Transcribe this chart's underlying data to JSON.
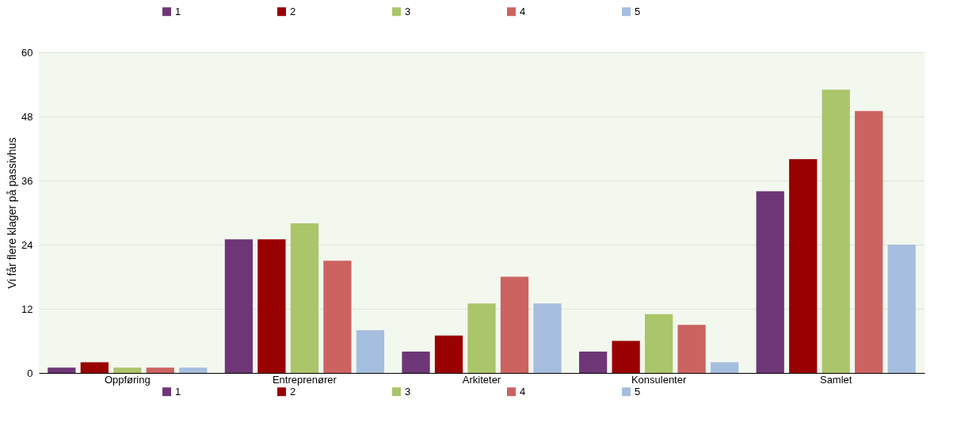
{
  "chart_data": {
    "type": "bar",
    "ylabel": "Vi får flere klager på passivhus",
    "categories": [
      "Oppføring",
      "Entreprenører",
      "Arkiteter",
      "Konsulenter",
      "Samlet"
    ],
    "series": [
      {
        "name": "1",
        "color": "#6e3677",
        "values": [
          1,
          25,
          4,
          4,
          34
        ]
      },
      {
        "name": "2",
        "color": "#990000",
        "values": [
          2,
          25,
          7,
          6,
          40
        ]
      },
      {
        "name": "3",
        "color": "#abc56a",
        "values": [
          1,
          28,
          13,
          11,
          53
        ]
      },
      {
        "name": "4",
        "color": "#cc6360",
        "values": [
          1,
          21,
          18,
          9,
          49
        ]
      },
      {
        "name": "5",
        "color": "#a6bedf",
        "values": [
          1,
          8,
          13,
          2,
          24
        ]
      }
    ],
    "ylim": [
      0,
      60
    ],
    "yticks": [
      0,
      12,
      24,
      36,
      48,
      60
    ],
    "grid": "y",
    "legend": [
      "top",
      "bottom"
    ]
  }
}
